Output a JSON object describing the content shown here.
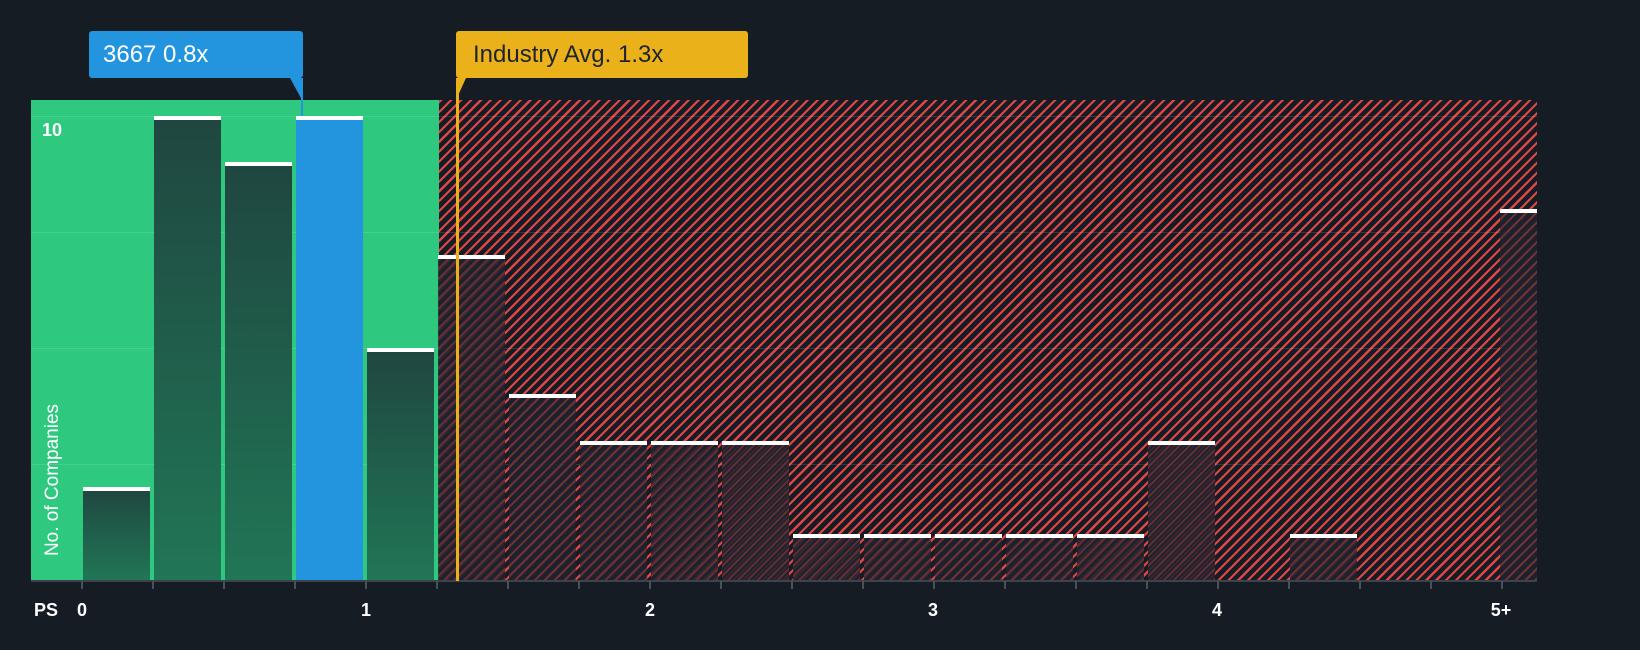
{
  "chart_data": {
    "type": "bar",
    "title": "",
    "xlabel": "PS",
    "ylabel": "No. of Companies",
    "bin_width": 0.25,
    "categories": [
      "0-0.25",
      "0.25-0.5",
      "0.5-0.75",
      "0.75-1.0",
      "1.0-1.25",
      "1.25-1.5",
      "1.5-1.75",
      "1.75-2.0",
      "2.0-2.25",
      "2.25-2.5",
      "2.5-2.75",
      "2.75-3.0",
      "3.0-3.25",
      "3.25-3.5",
      "3.5-3.75",
      "3.75-4.0",
      "4.0-4.25",
      "4.25-4.5",
      "4.5-4.75",
      "4.75-5.0",
      "5+"
    ],
    "values": [
      2,
      10,
      9,
      10,
      5,
      7,
      4,
      3,
      3,
      3,
      1,
      1,
      1,
      1,
      1,
      3,
      0,
      1,
      0,
      0,
      8
    ],
    "highlighted_bin": "0.75-1.0",
    "x_tick_labels": [
      "0",
      "1",
      "2",
      "3",
      "4",
      "5+"
    ],
    "y_tick_labels": [
      "10"
    ],
    "ylim": [
      0,
      10.3
    ],
    "grid": true,
    "annotations": [
      {
        "label": "3667 0.8x",
        "x": 0.8,
        "color": "#2394de"
      },
      {
        "label": "Industry Avg. 1.3x",
        "x": 1.3,
        "color": "#ebb11a"
      }
    ],
    "regions": [
      {
        "name": "below-average",
        "from": 0,
        "to": 1.3,
        "color": "#2ec97f"
      },
      {
        "name": "above-average",
        "from": 1.3,
        "to": "5+",
        "color": "#e04646",
        "pattern": "hatched"
      }
    ]
  },
  "labels": {
    "company": "3667 0.8x",
    "industry": "Industry Avg. 1.3x",
    "y_axis": "No. of Companies",
    "y_tick": "10",
    "x_axis_prefix": "PS",
    "x_ticks": [
      "0",
      "1",
      "2",
      "3",
      "4",
      "5+"
    ]
  }
}
